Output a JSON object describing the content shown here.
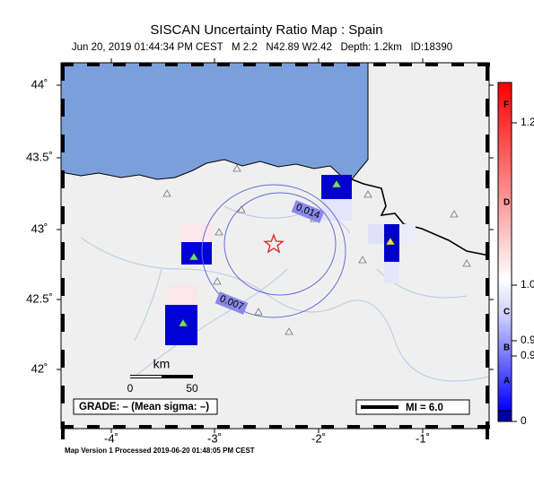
{
  "header": {
    "title": "SISCAN Uncertainty Ratio Map : Spain",
    "subtitle": "Jun 20, 2019 01:44:34 PM CEST   M 2.2   N42.89 W2.42   Depth: 1.2km   ID:18390"
  },
  "map": {
    "lat_labels": [
      "44˚",
      "43.5˚",
      "43˚",
      "42.5˚",
      "42˚"
    ],
    "lon_labels": [
      "-4˚",
      "-3˚",
      "-2˚",
      "-1˚"
    ],
    "contour_labels": [
      "0.014",
      "0.007"
    ]
  },
  "colorbar": {
    "labels": [
      "F",
      "1.2",
      "D",
      "1.0",
      "C",
      "0.9",
      "B",
      "0.9",
      "A",
      "0"
    ]
  },
  "scale": {
    "unit": "km",
    "labels": [
      "0",
      "50"
    ]
  },
  "grade": "GRADE: – (Mean sigma: –)",
  "legend": "MI = 6.0",
  "footer": "Map Version 1 Processed 2019-06-20 01:48:05 PM CEST"
}
